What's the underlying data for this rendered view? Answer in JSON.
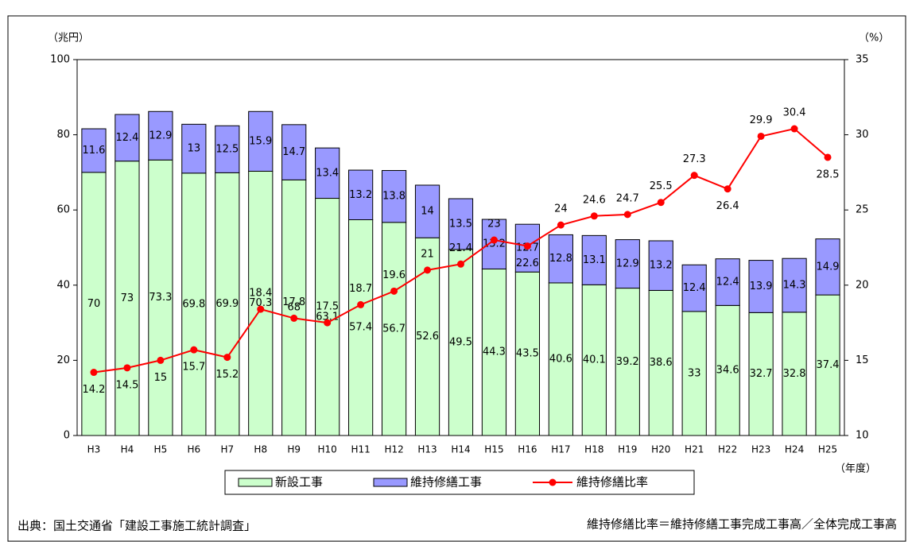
{
  "chart_data": {
    "type": "bar_line",
    "y_label": "（兆円）",
    "y2_label": "（%）",
    "x_label": "（年度）",
    "categories": [
      "H3",
      "H4",
      "H5",
      "H6",
      "H7",
      "H8",
      "H9",
      "H10",
      "H11",
      "H12",
      "H13",
      "H14",
      "H15",
      "H16",
      "H17",
      "H18",
      "H19",
      "H20",
      "H21",
      "H22",
      "H23",
      "H24",
      "H25"
    ],
    "series": [
      {
        "name": "新設工事",
        "color": "#ccffcc",
        "values": [
          70,
          73,
          73.3,
          69.8,
          69.9,
          70.3,
          68,
          63.1,
          57.4,
          56.7,
          52.6,
          49.5,
          44.3,
          43.5,
          40.6,
          40.1,
          39.2,
          38.6,
          33,
          34.6,
          32.7,
          32.8,
          37.4
        ]
      },
      {
        "name": "維持修繕工事",
        "color": "#9999ff",
        "values": [
          11.6,
          12.4,
          12.9,
          13,
          12.5,
          15.9,
          14.7,
          13.4,
          13.2,
          13.8,
          14,
          13.5,
          13.2,
          12.7,
          12.8,
          13.1,
          12.9,
          13.2,
          12.4,
          12.4,
          13.9,
          14.3,
          14.9
        ]
      },
      {
        "name": "維持修繕比率",
        "color": "#ff0000",
        "axis": "y2",
        "values": [
          14.2,
          14.5,
          15,
          15.7,
          15.2,
          18.4,
          17.8,
          17.5,
          18.7,
          19.6,
          21,
          21.4,
          23,
          22.6,
          24,
          24.6,
          24.7,
          25.5,
          27.3,
          26.4,
          29.9,
          30.4,
          28.5
        ]
      }
    ],
    "ylim": [
      0,
      100
    ],
    "yticks": [
      0,
      20,
      40,
      60,
      80,
      100
    ],
    "y2lim": [
      10,
      35
    ],
    "y2ticks": [
      10,
      15,
      20,
      25,
      30,
      35
    ],
    "source": "出典：国土交通省「建設工事施工統計調査」",
    "note": "維持修繕比率＝維持修繕工事完成工事高／全体完成工事高"
  }
}
